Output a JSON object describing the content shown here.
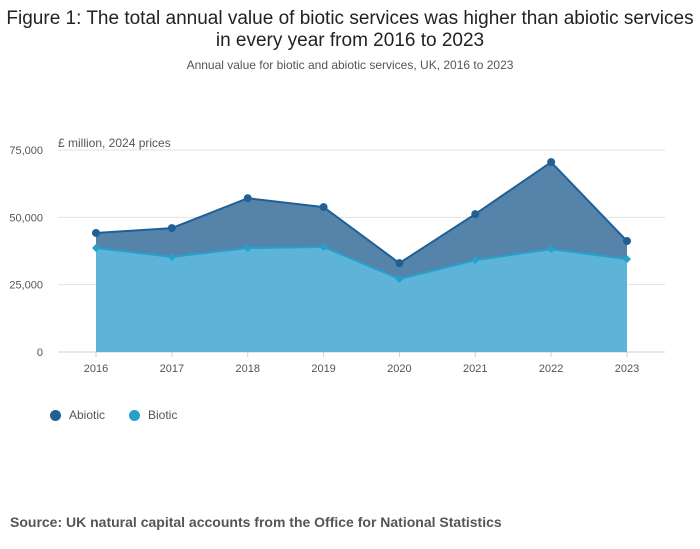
{
  "chart_data": {
    "type": "area",
    "stacked": true,
    "title": "Figure 1: The total annual value of biotic services was higher than abiotic services in every year from 2016 to 2023",
    "subtitle": "Annual value for biotic and abiotic services, UK, 2016 to 2023",
    "ylabel": "£ million, 2024 prices",
    "xlabel": "",
    "categories": [
      "2016",
      "2017",
      "2018",
      "2019",
      "2020",
      "2021",
      "2022",
      "2023"
    ],
    "series": [
      {
        "name": "Biotic",
        "color": "#27a0cc",
        "values": [
          38600,
          35300,
          38600,
          39000,
          27100,
          34100,
          38200,
          34500
        ]
      },
      {
        "name": "Abiotic",
        "color": "#206095",
        "values": [
          5600,
          10700,
          18500,
          14800,
          5900,
          17100,
          32300,
          6700
        ]
      }
    ],
    "ylim": [
      0,
      75000
    ],
    "yticks": [
      0,
      25000,
      50000,
      75000
    ],
    "ytick_labels": [
      "0",
      "25,000",
      "50,000",
      "75,000"
    ],
    "legend": "bottom-left",
    "grid": true
  },
  "source": "Source: UK natural capital accounts from the Office for National Statistics"
}
